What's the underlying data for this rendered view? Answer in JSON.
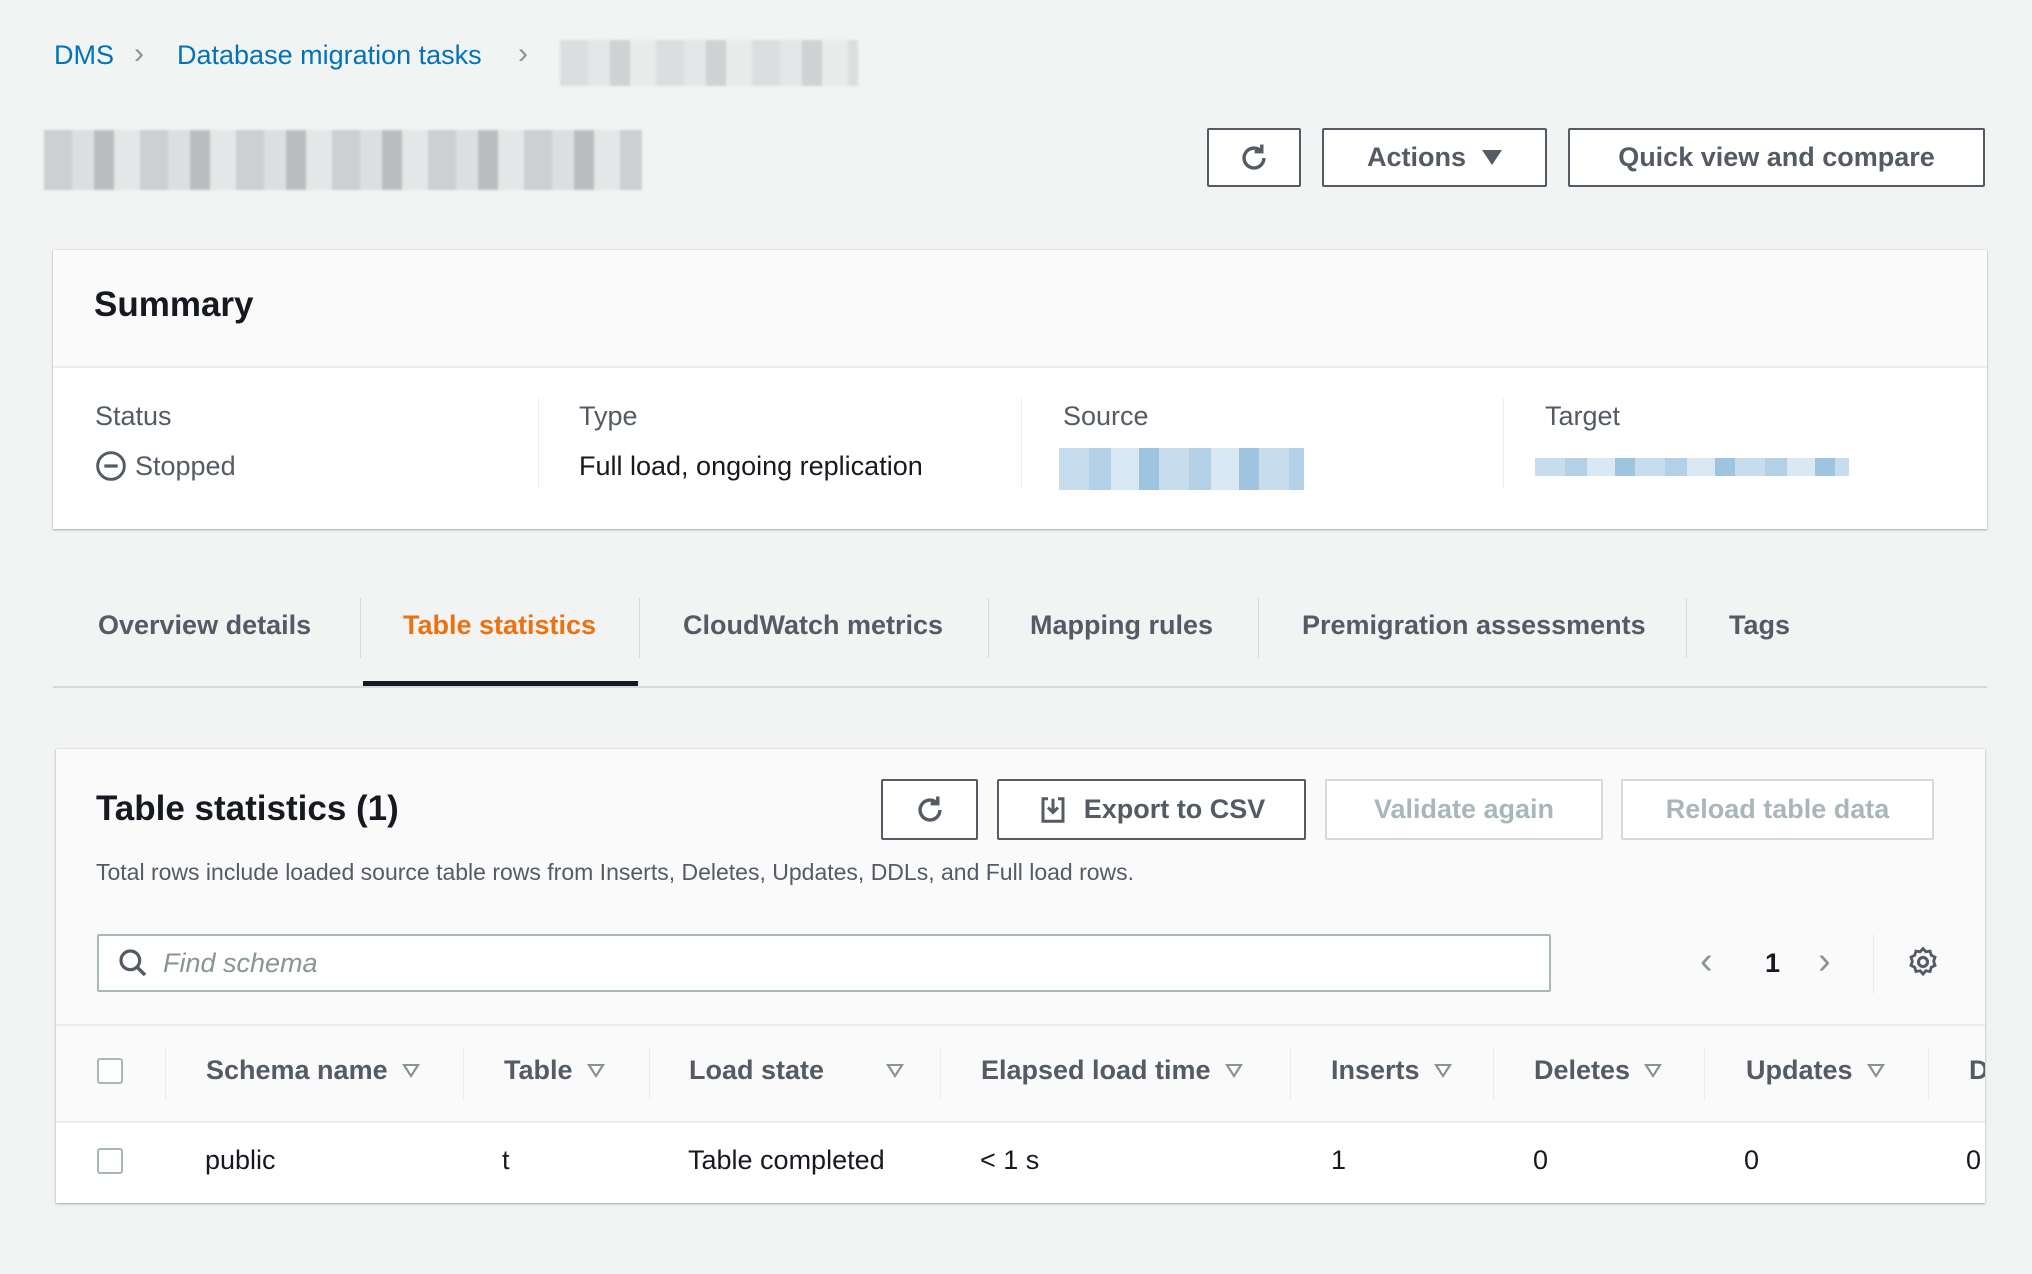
{
  "breadcrumb": {
    "items": [
      "DMS",
      "Database migration tasks"
    ]
  },
  "header": {
    "refresh_icon": "refresh-icon",
    "actions_label": "Actions",
    "quick_view_label": "Quick view and compare"
  },
  "summary": {
    "title": "Summary",
    "status_label": "Status",
    "status_value": "Stopped",
    "status_icon": "stopped-icon",
    "type_label": "Type",
    "type_value": "Full load, ongoing replication",
    "source_label": "Source",
    "target_label": "Target"
  },
  "tabs": [
    {
      "label": "Overview details"
    },
    {
      "label": "Table statistics",
      "active": true
    },
    {
      "label": "CloudWatch metrics"
    },
    {
      "label": "Mapping rules"
    },
    {
      "label": "Premigration assessments"
    },
    {
      "label": "Tags"
    }
  ],
  "table_stats": {
    "title": "Table statistics (1)",
    "export_label": "Export to CSV",
    "validate_label": "Validate again",
    "reload_label": "Reload table data",
    "description": "Total rows include loaded source table rows from Inserts, Deletes, Updates, DDLs, and Full load rows.",
    "search_placeholder": "Find schema",
    "page": "1",
    "columns": [
      "Schema name",
      "Table",
      "Load state",
      "Elapsed load time",
      "Inserts",
      "Deletes",
      "Updates",
      "D"
    ],
    "rows": [
      [
        "public",
        "t",
        "Table completed",
        "< 1 s",
        "1",
        "0",
        "0",
        "0"
      ]
    ]
  },
  "colors": {
    "link": "#0073bb",
    "active_tab": "#ec7211",
    "text": "#16191f",
    "muted": "#545b64",
    "disabled": "#aab7b8"
  }
}
